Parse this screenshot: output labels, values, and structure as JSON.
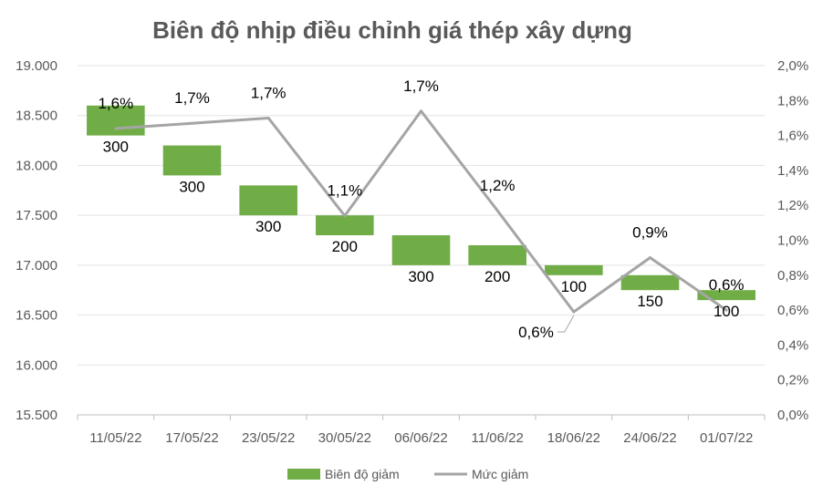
{
  "chart_data": {
    "type": "bar",
    "title": "Biên độ nhịp điều chỉnh giá thép xây dựng",
    "categories": [
      "11/05/22",
      "17/05/22",
      "23/05/22",
      "30/05/22",
      "06/06/22",
      "11/06/22",
      "18/06/22",
      "24/06/22",
      "01/07/22"
    ],
    "y_left": {
      "min": 15500,
      "max": 19000,
      "step": 500,
      "tick_labels": [
        "15.500",
        "16.000",
        "16.500",
        "17.000",
        "17.500",
        "18.000",
        "18.500",
        "19.000"
      ]
    },
    "y_right": {
      "min": 0,
      "max": 2.0,
      "step": 0.2,
      "tick_labels": [
        "0,0%",
        "0,2%",
        "0,4%",
        "0,6%",
        "0,8%",
        "1,0%",
        "1,2%",
        "1,4%",
        "1,6%",
        "1,8%",
        "2,0%"
      ]
    },
    "series": [
      {
        "name": "Biên độ giảm",
        "type": "floating-bar",
        "color": "#70ad47",
        "from": [
          18600,
          18200,
          17800,
          17500,
          17300,
          17200,
          17000,
          16900,
          16750
        ],
        "to": [
          18300,
          17900,
          17500,
          17300,
          17000,
          17000,
          16900,
          16750,
          16650
        ],
        "labels": [
          "300",
          "300",
          "300",
          "200",
          "300",
          "200",
          "100",
          "150",
          "100"
        ]
      },
      {
        "name": "Mức giảm",
        "type": "line",
        "axis": "right",
        "color": "#a5a5a5",
        "values": [
          1.64,
          1.67,
          1.7,
          1.14,
          1.74,
          1.17,
          0.59,
          0.9,
          0.6
        ],
        "labels": [
          "1,6%",
          "1,7%",
          "1,7%",
          "1,1%",
          "1,7%",
          "1,2%",
          "0,6%",
          "0,9%",
          "0,6%"
        ]
      }
    ],
    "grid": true,
    "legend": "bottom"
  }
}
